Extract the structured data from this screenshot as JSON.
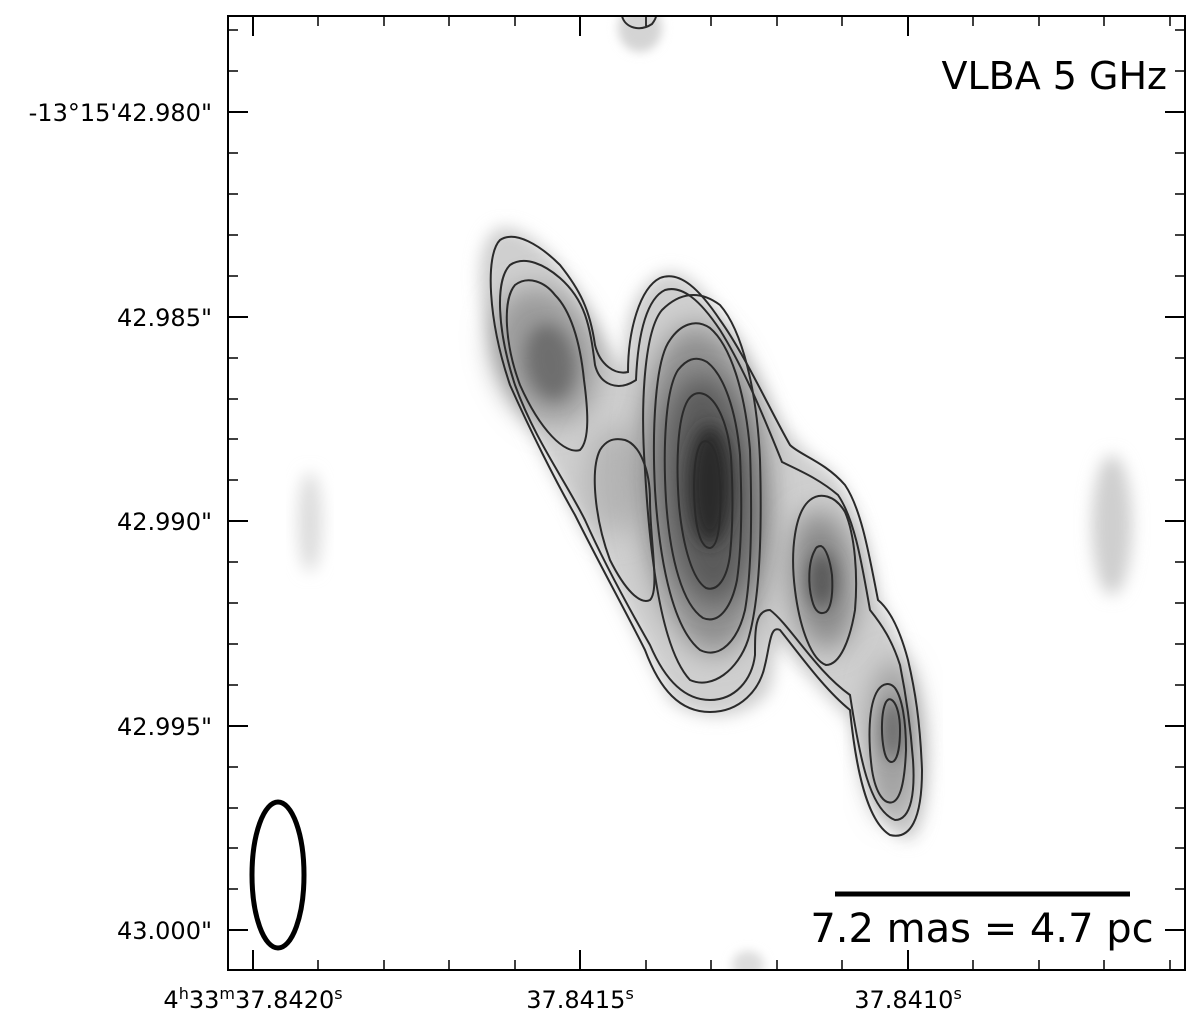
{
  "panel_label": "VLBA 5 GHz",
  "scalebar": {
    "label": "7.2 mas = 4.7 pc"
  },
  "axes": {
    "y_ticks": [
      {
        "label": "-13°15'42.980\""
      },
      {
        "label": "42.985\""
      },
      {
        "label": "42.990\""
      },
      {
        "label": "42.995\""
      },
      {
        "label": "43.000\""
      }
    ],
    "x_ticks": [
      {
        "h": "4",
        "m": "33",
        "s": "37.8420"
      },
      {
        "label": "37.8415"
      },
      {
        "label": "37.8410"
      }
    ],
    "x_unit_h": "h",
    "x_unit_m": "m",
    "x_unit_s": "s"
  },
  "colormap": "grayscale",
  "contour_color": "#2a2a2a"
}
